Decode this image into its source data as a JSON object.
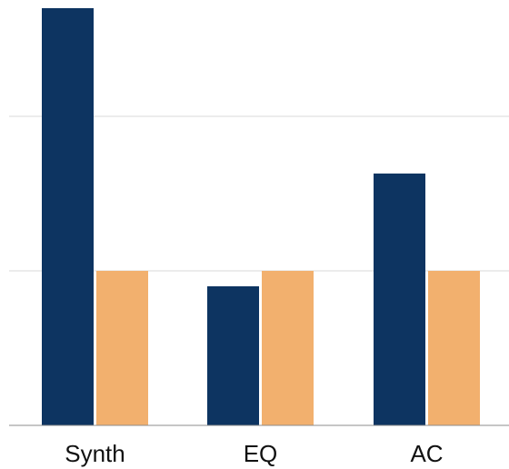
{
  "chart_data": {
    "type": "bar",
    "categories": [
      "Synth",
      "EQ",
      "AC"
    ],
    "series": [
      {
        "values": [
          2.7,
          0.9,
          1.63
        ]
      },
      {
        "values": [
          1.0,
          1.0,
          1.0
        ]
      }
    ],
    "ylim": [
      0,
      2.75
    ],
    "gridlines": [
      1,
      2
    ],
    "grid": true,
    "legend": "none"
  },
  "colors": {
    "series": [
      "#0d3461",
      "#f2b06e"
    ],
    "grid": "#d9d9d9",
    "baseline": "#8c8c8c"
  }
}
